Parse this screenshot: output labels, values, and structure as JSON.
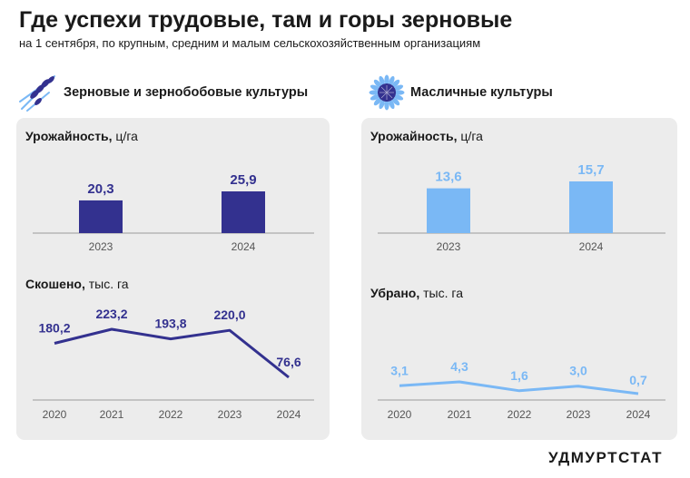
{
  "header": {
    "title": "Где успехи трудовые, там и горы зерновые",
    "subtitle": "на 1 сентября, по крупным, средним и малым сельскохозяйственным организациям"
  },
  "sections": {
    "grain": {
      "label": "Зерновые и зернобобовые культуры",
      "icon": "wheat-icon",
      "color": "#33318f"
    },
    "oil": {
      "label": "Масличные культуры",
      "icon": "sunflower-icon",
      "color": "#7ab8f5"
    }
  },
  "panels": {
    "grain_yield": {
      "label_bold": "Урожайность,",
      "label_unit": " ц/га"
    },
    "grain_harvest": {
      "label_bold": "Скошено,",
      "label_unit": " тыс. га"
    },
    "oil_yield": {
      "label_bold": "Урожайность,",
      "label_unit": " ц/га"
    },
    "oil_harvest": {
      "label_bold": "Убрано,",
      "label_unit": " тыс. га"
    }
  },
  "chart_data": [
    {
      "type": "bar",
      "title": "Урожайность, ц/га",
      "categories": [
        "2023",
        "2024"
      ],
      "values": [
        20.3,
        25.9
      ],
      "labels": [
        "20,3",
        "25,9"
      ],
      "color": "#33318f"
    },
    {
      "type": "line",
      "title": "Скошено, тыс. га",
      "categories": [
        "2020",
        "2021",
        "2022",
        "2023",
        "2024"
      ],
      "values": [
        180.2,
        223.2,
        193.8,
        220.0,
        76.6
      ],
      "labels": [
        "180,2",
        "223,2",
        "193,8",
        "220,0",
        "76,6"
      ],
      "color": "#33318f"
    },
    {
      "type": "bar",
      "title": "Урожайность, ц/га",
      "categories": [
        "2023",
        "2024"
      ],
      "values": [
        13.6,
        15.7
      ],
      "labels": [
        "13,6",
        "15,7"
      ],
      "color": "#7ab8f5"
    },
    {
      "type": "line",
      "title": "Убрано, тыс. га",
      "categories": [
        "2020",
        "2021",
        "2022",
        "2023",
        "2024"
      ],
      "values": [
        3.1,
        4.3,
        1.6,
        3.0,
        0.7
      ],
      "labels": [
        "3,1",
        "4,3",
        "1,6",
        "3,0",
        "0,7"
      ],
      "color": "#7ab8f5"
    }
  ],
  "footer": {
    "brand": "УДМУРТСТАТ"
  }
}
